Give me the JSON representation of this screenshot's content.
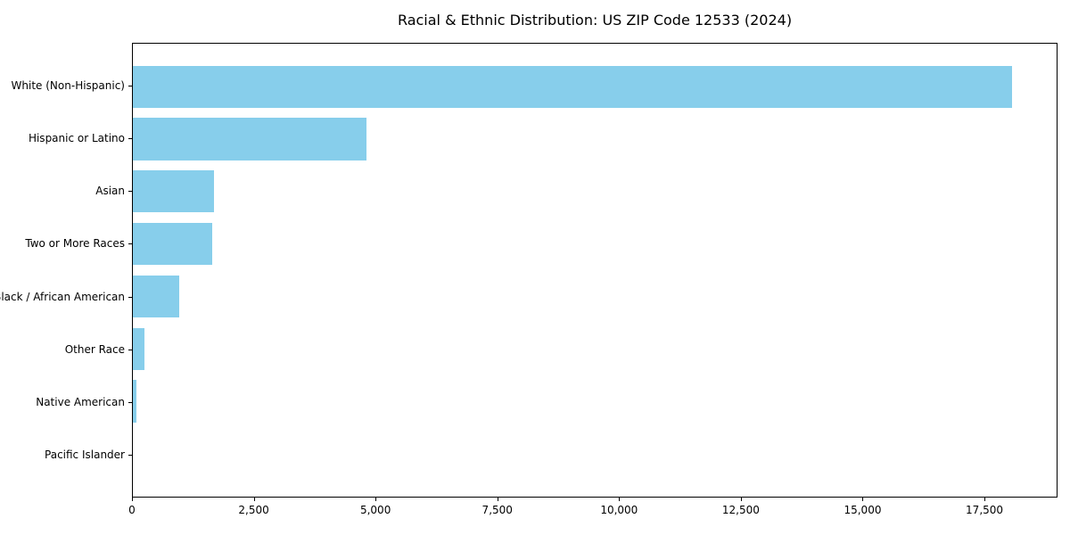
{
  "title": "Racial & Ethnic Distribution: US ZIP Code 12533 (2024)",
  "colors": {
    "bar": "#87CEEB",
    "axis": "#000000",
    "background": "#FFFFFF",
    "text": "#000000"
  },
  "chart_data": {
    "type": "bar",
    "orientation": "horizontal",
    "title": "Racial & Ethnic Distribution: US ZIP Code 12533 (2024)",
    "categories": [
      "White (Non-Hispanic)",
      "Hispanic or Latino",
      "Asian",
      "Two or More Races",
      "Black / African American",
      "Other Race",
      "Native American",
      "Pacific Islander"
    ],
    "values": [
      18080,
      4810,
      1660,
      1630,
      950,
      230,
      80,
      0
    ],
    "xlabel": "",
    "ylabel": "",
    "xlim": [
      0,
      19000
    ],
    "xticks": [
      0,
      2500,
      5000,
      7500,
      10000,
      12500,
      15000,
      17500
    ],
    "xtick_labels": [
      "0",
      "2,500",
      "5,000",
      "7,500",
      "10,000",
      "12,500",
      "15,000",
      "17,500"
    ],
    "grid": false,
    "legend": null,
    "bar_color": "#87CEEB"
  }
}
